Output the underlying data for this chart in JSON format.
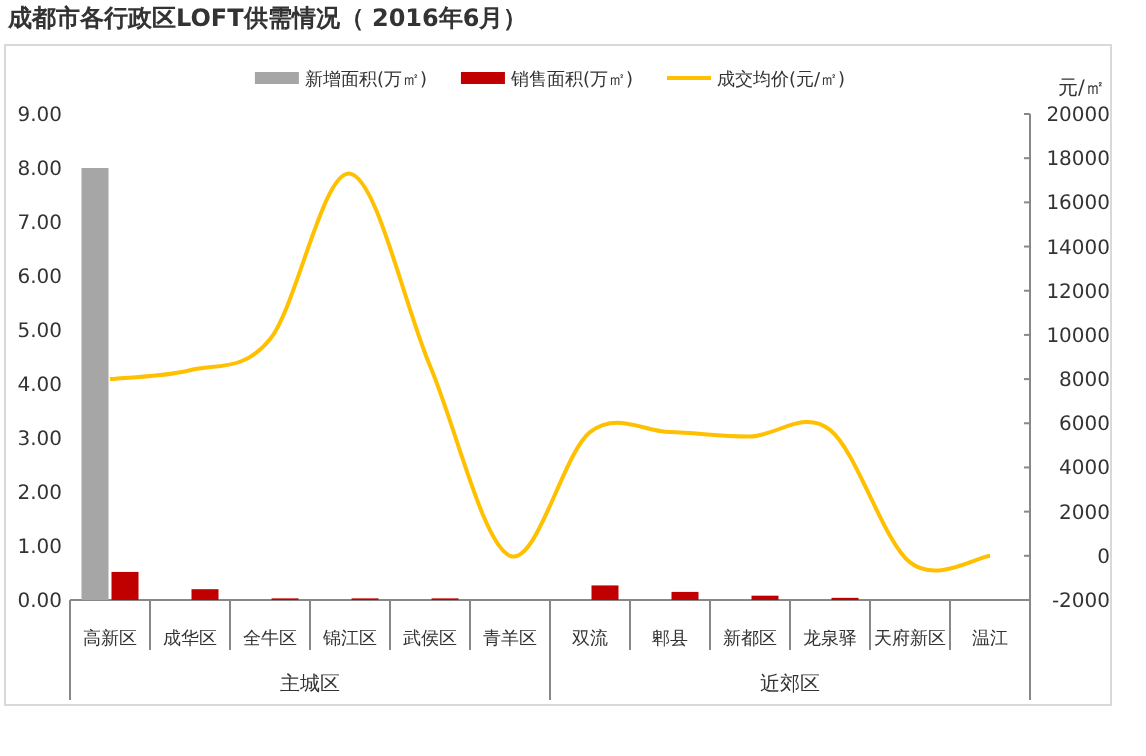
{
  "chart_data": {
    "type": "bar",
    "title": "成都市各行政区LOFT供需情况（ 2016年6月）",
    "y2label": "元/㎡",
    "categories": [
      "高新区",
      "成华区",
      "全牛区",
      "锦江区",
      "武侯区",
      "青羊区",
      "双流",
      "郫县",
      "新都区",
      "龙泉驿",
      "天府新区",
      "温江"
    ],
    "series": [
      {
        "name": "新增面积(万㎡)",
        "color": "#a6a6a6",
        "values": [
          8.0,
          0,
          0,
          0,
          0,
          0,
          0,
          0,
          0,
          0,
          0,
          0
        ]
      },
      {
        "name": "销售面积(万㎡)",
        "color": "#c00000",
        "values": [
          0.52,
          0.2,
          0.03,
          0.03,
          0.03,
          0,
          0.27,
          0.15,
          0.08,
          0.04,
          0,
          0
        ]
      },
      {
        "name": "成交均价(元/㎡)",
        "color": "#ffc000",
        "type": "line",
        "axis": "y2",
        "values": [
          8000,
          8400,
          9800,
          17300,
          8600,
          0,
          5600,
          5600,
          5400,
          5700,
          -300,
          0
        ]
      }
    ],
    "ylim": [
      0,
      9
    ],
    "yticks": [
      {
        "value": 0,
        "label": "0.00"
      },
      {
        "value": 1,
        "label": "1.00"
      },
      {
        "value": 2,
        "label": "2.00"
      },
      {
        "value": 3,
        "label": "3.00"
      },
      {
        "value": 4,
        "label": "4.00"
      },
      {
        "value": 5,
        "label": "5.00"
      },
      {
        "value": 6,
        "label": "6.00"
      },
      {
        "value": 7,
        "label": "7.00"
      },
      {
        "value": 8,
        "label": "8.00"
      },
      {
        "value": 9,
        "label": "9.00"
      }
    ],
    "y2lim": [
      -2000,
      20000
    ],
    "y2ticks": [
      -2000,
      0,
      2000,
      4000,
      6000,
      8000,
      10000,
      12000,
      14000,
      16000,
      18000,
      20000
    ],
    "annotations": [
      "主城区",
      "近郊区"
    ],
    "legend": "top",
    "grid": false
  }
}
